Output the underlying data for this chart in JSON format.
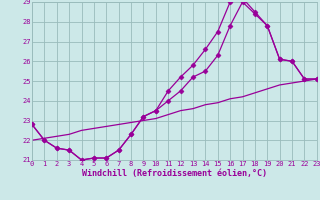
{
  "xlabel": "Windchill (Refroidissement éolien,°C)",
  "bg_color": "#cce8e8",
  "grid_color": "#99bbbb",
  "line_color": "#990099",
  "xlim": [
    0,
    23
  ],
  "ylim": [
    21,
    29
  ],
  "xticks": [
    0,
    1,
    2,
    3,
    4,
    5,
    6,
    7,
    8,
    9,
    10,
    11,
    12,
    13,
    14,
    15,
    16,
    17,
    18,
    19,
    20,
    21,
    22,
    23
  ],
  "yticks": [
    21,
    22,
    23,
    24,
    25,
    26,
    27,
    28,
    29
  ],
  "line1_x": [
    0,
    1,
    2,
    3,
    4,
    5,
    6,
    7,
    8,
    9,
    10,
    11,
    12,
    13,
    14,
    15,
    16,
    17,
    18,
    19,
    20,
    21,
    22,
    23
  ],
  "line1_y": [
    22.8,
    22.0,
    21.6,
    21.5,
    21.0,
    21.1,
    21.1,
    21.5,
    22.3,
    23.2,
    23.5,
    24.0,
    24.5,
    25.2,
    25.5,
    26.3,
    27.8,
    29.0,
    28.4,
    27.8,
    26.1,
    26.0,
    25.1,
    25.1
  ],
  "line2_x": [
    0,
    1,
    2,
    3,
    4,
    5,
    6,
    7,
    8,
    9,
    10,
    11,
    12,
    13,
    14,
    15,
    16,
    17,
    18,
    19,
    20,
    21,
    22,
    23
  ],
  "line2_y": [
    22.8,
    22.0,
    21.6,
    21.5,
    21.0,
    21.1,
    21.1,
    21.5,
    22.3,
    23.2,
    23.5,
    24.5,
    25.2,
    25.8,
    26.6,
    27.5,
    29.0,
    29.2,
    28.5,
    27.8,
    26.1,
    26.0,
    25.1,
    25.1
  ],
  "line3_x": [
    0,
    1,
    2,
    3,
    4,
    5,
    6,
    7,
    8,
    9,
    10,
    11,
    12,
    13,
    14,
    15,
    16,
    17,
    18,
    19,
    20,
    21,
    22,
    23
  ],
  "line3_y": [
    22.0,
    22.1,
    22.2,
    22.3,
    22.5,
    22.6,
    22.7,
    22.8,
    22.9,
    23.0,
    23.1,
    23.3,
    23.5,
    23.6,
    23.8,
    23.9,
    24.1,
    24.2,
    24.4,
    24.6,
    24.8,
    24.9,
    25.0,
    25.1
  ],
  "marker": "D",
  "markersize": 2.5,
  "linewidth": 0.9,
  "tick_fontsize": 5.0,
  "xlabel_fontsize": 6.0
}
